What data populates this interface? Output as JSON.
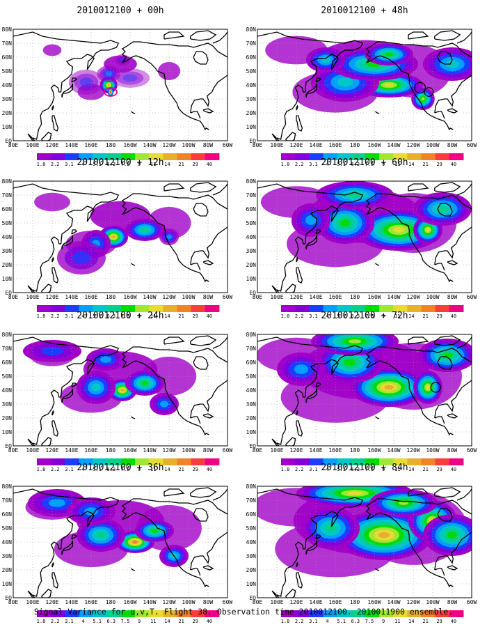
{
  "figure": {
    "caption": "Signal Variance for u,v,T. Flight 38. Observation time 2010012100. 2010011900 ensemble."
  },
  "colors": {
    "scale": [
      "#a000c8",
      "#8200dc",
      "#1e3cff",
      "#00a0ff",
      "#00c8c8",
      "#00d28c",
      "#00dc00",
      "#a0e632",
      "#e6dc32",
      "#e6af2d",
      "#f08228",
      "#fa3c3c",
      "#f00082"
    ],
    "coastline": "#000000",
    "grid": "#9a9a9a"
  },
  "colorbar": {
    "labels": [
      "1.8",
      "2.2",
      "3.1",
      "4",
      "5.1",
      "6.3",
      "7.5",
      "9",
      "11",
      "14",
      "21",
      "29",
      "40"
    ]
  },
  "axes": {
    "x_labels": [
      "80E",
      "100E",
      "120E",
      "140E",
      "160E",
      "180",
      "160W",
      "140W",
      "120W",
      "100W",
      "80W",
      "60W"
    ],
    "y_labels": [
      "80N",
      "70N",
      "60N",
      "50N",
      "40N",
      "30N",
      "20N",
      "10N",
      "EQ"
    ]
  },
  "panels": [
    {
      "title": "2010012100 + 00h",
      "lead_hours": 0,
      "level": 0.1,
      "blobs": [
        [
          178,
          40,
          9,
          6,
          1.0,
          9
        ],
        [
          180,
          35,
          3,
          3,
          1.0,
          12
        ],
        [
          155,
          42,
          18,
          9,
          0.5,
          2
        ],
        [
          200,
          45,
          20,
          7,
          0.45,
          2
        ],
        [
          178,
          48,
          12,
          6,
          0.6,
          3
        ],
        [
          192,
          58,
          8,
          4,
          0.5,
          2
        ]
      ],
      "circles": []
    },
    {
      "title": "2010012100 + 48h",
      "lead_hours": 48,
      "level": 0.6,
      "blobs": [
        [
          215,
          40,
          35,
          9,
          1.0,
          8
        ],
        [
          170,
          42,
          35,
          14,
          1.0,
          4
        ],
        [
          200,
          55,
          45,
          12,
          1.0,
          6
        ],
        [
          250,
          30,
          12,
          8,
          1.0,
          7
        ],
        [
          215,
          62,
          25,
          8,
          1.0,
          6
        ],
        [
          150,
          58,
          20,
          9,
          1.0,
          4
        ],
        [
          280,
          55,
          30,
          12,
          1.0,
          4
        ]
      ],
      "circles": [
        [
          247,
          38,
          5.5
        ],
        [
          256,
          35,
          4.5
        ]
      ]
    },
    {
      "title": "2010012100 + 12h",
      "lead_hours": 12,
      "level": 0.3,
      "blobs": [
        [
          183,
          40,
          15,
          8,
          1.0,
          9
        ],
        [
          215,
          45,
          20,
          8,
          1.0,
          5
        ],
        [
          165,
          35,
          15,
          10,
          1.0,
          3
        ],
        [
          240,
          40,
          10,
          6,
          0.8,
          3
        ],
        [
          150,
          25,
          25,
          12,
          0.8,
          2
        ]
      ],
      "circles": []
    },
    {
      "title": "2010012100 + 60h",
      "lead_hours": 60,
      "level": 0.7,
      "blobs": [
        [
          225,
          45,
          45,
          15,
          1.0,
          8
        ],
        [
          170,
          50,
          30,
          15,
          1.0,
          6
        ],
        [
          255,
          45,
          15,
          10,
          1.0,
          8
        ],
        [
          180,
          70,
          40,
          10,
          1.0,
          5
        ],
        [
          270,
          60,
          30,
          12,
          1.0,
          5
        ],
        [
          135,
          52,
          20,
          12,
          1.0,
          3
        ]
      ],
      "circles": []
    },
    {
      "title": "2010012100 + 24h",
      "lead_hours": 24,
      "level": 0.4,
      "blobs": [
        [
          192,
          40,
          15,
          8,
          1.0,
          9
        ],
        [
          215,
          45,
          20,
          9,
          1.0,
          6
        ],
        [
          165,
          42,
          20,
          12,
          1.0,
          4
        ],
        [
          235,
          30,
          15,
          8,
          1.0,
          3
        ],
        [
          120,
          68,
          30,
          8,
          1.0,
          2
        ],
        [
          175,
          62,
          20,
          8,
          1.0,
          3
        ]
      ],
      "circles": []
    },
    {
      "title": "2010012100 + 72h",
      "lead_hours": 72,
      "level": 0.8,
      "blobs": [
        [
          215,
          42,
          40,
          14,
          1.0,
          9
        ],
        [
          175,
          60,
          35,
          15,
          1.0,
          6
        ],
        [
          255,
          42,
          15,
          12,
          1.0,
          8
        ],
        [
          180,
          75,
          45,
          10,
          1.0,
          7
        ],
        [
          275,
          65,
          30,
          12,
          1.0,
          6
        ],
        [
          125,
          55,
          25,
          12,
          1.0,
          3
        ]
      ],
      "circles": [
        [
          263,
          42,
          5
        ]
      ]
    },
    {
      "title": "2010012100 + 36h",
      "lead_hours": 36,
      "level": 0.5,
      "blobs": [
        [
          205,
          40,
          20,
          8,
          1.0,
          10
        ],
        [
          225,
          48,
          20,
          8,
          1.0,
          6
        ],
        [
          170,
          45,
          25,
          12,
          1.0,
          5
        ],
        [
          245,
          30,
          15,
          8,
          1.0,
          4
        ],
        [
          125,
          68,
          30,
          10,
          1.0,
          3
        ],
        [
          160,
          62,
          25,
          10,
          1.0,
          3
        ]
      ],
      "circles": []
    },
    {
      "title": "2010012100 + 84h",
      "lead_hours": 84,
      "level": 0.9,
      "blobs": [
        [
          210,
          45,
          50,
          18,
          1.0,
          9
        ],
        [
          180,
          75,
          60,
          10,
          1.0,
          8
        ],
        [
          260,
          55,
          25,
          15,
          1.0,
          8
        ],
        [
          155,
          50,
          30,
          15,
          1.0,
          5
        ],
        [
          280,
          45,
          30,
          15,
          1.0,
          6
        ],
        [
          230,
          68,
          35,
          10,
          1.0,
          7
        ]
      ],
      "circles": []
    }
  ]
}
